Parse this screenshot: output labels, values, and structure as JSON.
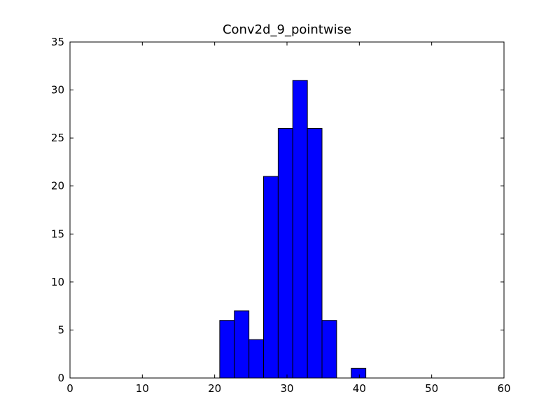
{
  "chart_data": {
    "type": "histogram",
    "title": "Conv2d_9_pointwise",
    "bins": [
      20.7,
      22.72,
      24.74,
      26.76,
      28.78,
      30.8,
      32.82,
      34.84,
      36.86,
      38.88,
      40.9
    ],
    "counts": [
      6,
      7,
      4,
      21,
      26,
      31,
      26,
      6,
      0,
      1
    ],
    "color": "#0000ff",
    "xlim": [
      0,
      60
    ],
    "xticks": [
      0,
      10,
      20,
      30,
      40,
      50,
      60
    ],
    "ylim": [
      0,
      35
    ],
    "yticks": [
      0,
      5,
      10,
      15,
      20,
      25,
      30,
      35
    ]
  }
}
